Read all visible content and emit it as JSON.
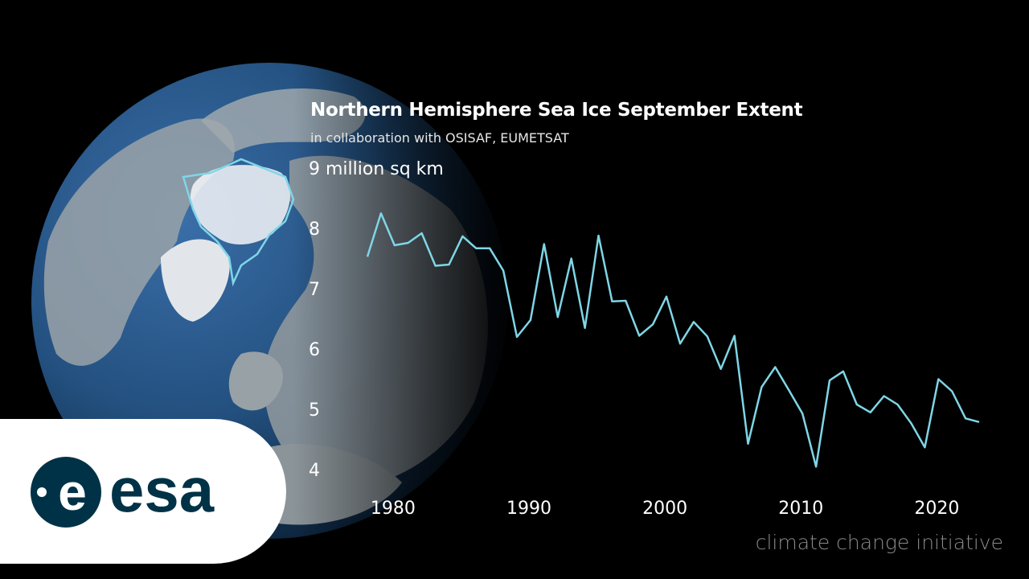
{
  "colors": {
    "background": "#000000",
    "line": "#7fd6e6",
    "ocean": "#2e5f96",
    "esa_brand": "#003247"
  },
  "branding": {
    "logo_text": "esa",
    "footer": "climate change initiative"
  },
  "chart_data": {
    "type": "line",
    "title": "Northern Hemisphere Sea Ice September Extent",
    "subtitle": "in collaboration with OSISAF, EUMETSAT",
    "ylabel": "million sq km",
    "y_top_tick_label": "9 million sq km",
    "ylim": [
      4,
      9
    ],
    "xlim": [
      1979,
      2024
    ],
    "yticks": [
      4,
      5,
      6,
      7,
      8,
      9
    ],
    "xticks": [
      1980,
      1990,
      2000,
      2010,
      2020
    ],
    "grid": false,
    "legend": "none",
    "x": [
      1979,
      1980,
      1981,
      1982,
      1983,
      1984,
      1985,
      1986,
      1987,
      1988,
      1989,
      1990,
      1991,
      1992,
      1993,
      1994,
      1995,
      1996,
      1997,
      1998,
      1999,
      2000,
      2001,
      2002,
      2003,
      2004,
      2005,
      2006,
      2007,
      2008,
      2009,
      2010,
      2011,
      2012,
      2013,
      2014,
      2015,
      2016,
      2017,
      2018,
      2019,
      2020,
      2021,
      2022,
      2023,
      2024
    ],
    "series": [
      {
        "values": [
          7.53,
          8.25,
          7.72,
          7.76,
          7.92,
          7.38,
          7.4,
          7.87,
          7.67,
          7.67,
          7.3,
          6.2,
          6.48,
          7.74,
          6.53,
          7.5,
          6.35,
          7.88,
          6.79,
          6.8,
          6.22,
          6.41,
          6.87,
          6.09,
          6.45,
          6.21,
          5.67,
          6.22,
          4.43,
          5.37,
          5.7,
          5.32,
          4.93,
          4.05,
          5.48,
          5.63,
          5.08,
          4.95,
          5.22,
          5.08,
          4.77,
          4.37,
          5.5,
          5.3,
          4.85,
          4.79
        ]
      }
    ]
  }
}
